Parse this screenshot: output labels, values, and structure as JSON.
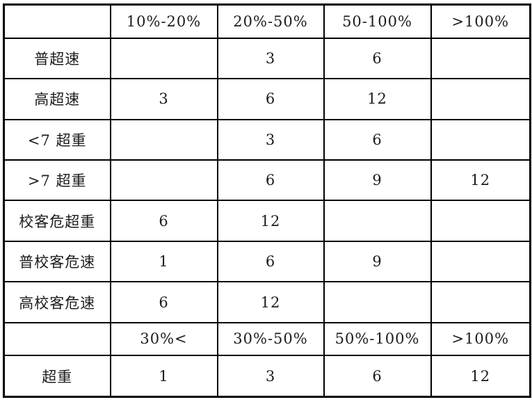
{
  "table": {
    "description_colors": {
      "border": "#000000",
      "text": "#1c1c1c",
      "background": "#ffffff"
    },
    "rows": [
      {
        "cells": [
          "",
          "10%-20%",
          "20%-50%",
          "50-100%",
          ">100%"
        ]
      },
      {
        "cells": [
          "普超速",
          "",
          "3",
          "6",
          ""
        ]
      },
      {
        "cells": [
          "高超速",
          "3",
          "6",
          "12",
          ""
        ]
      },
      {
        "cells": [
          "<7 超重",
          "",
          "3",
          "6",
          ""
        ]
      },
      {
        "cells": [
          ">7 超重",
          "",
          "6",
          "9",
          "12"
        ]
      },
      {
        "cells": [
          "校客危超重",
          "6",
          "12",
          "",
          ""
        ]
      },
      {
        "cells": [
          "普校客危速",
          "1",
          "6",
          "9",
          ""
        ]
      },
      {
        "cells": [
          "高校客危速",
          "6",
          "12",
          "",
          ""
        ]
      },
      {
        "cells": [
          "",
          "30%<",
          "30%-50%",
          "50%-100%",
          ">100%"
        ]
      },
      {
        "cells": [
          "超重",
          "1",
          "3",
          "6",
          "12"
        ]
      }
    ]
  }
}
